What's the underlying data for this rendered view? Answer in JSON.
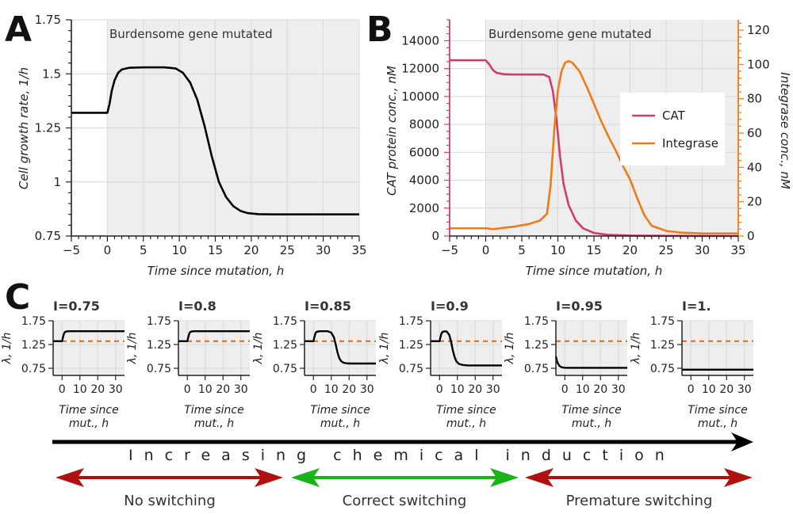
{
  "chart_data": [
    {
      "id": "A",
      "type": "line",
      "panel_label": "A",
      "xlabel": "Time since mutation, h",
      "ylabel": "Cell growth rate, 1/h",
      "xlim": [
        -5,
        35
      ],
      "ylim": [
        0.75,
        1.75
      ],
      "xticks": [
        -5,
        0,
        5,
        10,
        15,
        20,
        25,
        30,
        35
      ],
      "xtick_labels": [
        "−5",
        "0",
        "5",
        "10",
        "15",
        "20",
        "25",
        "30",
        "35"
      ],
      "yticks": [
        0.75,
        1,
        1.25,
        1.5,
        1.75
      ],
      "ytick_labels": [
        "0.75",
        "1",
        "1.25",
        "1.5",
        "1.75"
      ],
      "shaded_region": {
        "from": 0,
        "to": 35,
        "label": "Burdensome gene mutated"
      },
      "series": [
        {
          "name": "growth rate",
          "color": "#000000",
          "x": [
            -5,
            0,
            0.3,
            0.6,
            1,
            1.5,
            2,
            3,
            5,
            8,
            9.5,
            10.5,
            11.5,
            12.5,
            13.5,
            14.5,
            15.5,
            16.5,
            17.5,
            18.5,
            19.5,
            21,
            23,
            26,
            30,
            35
          ],
          "y": [
            1.32,
            1.32,
            1.36,
            1.42,
            1.47,
            1.505,
            1.52,
            1.528,
            1.53,
            1.53,
            1.525,
            1.505,
            1.46,
            1.38,
            1.26,
            1.12,
            1.0,
            0.93,
            0.888,
            0.866,
            0.856,
            0.851,
            0.85,
            0.85,
            0.85,
            0.85
          ]
        }
      ]
    },
    {
      "id": "B",
      "type": "line",
      "panel_label": "B",
      "xlabel": "Time since mutation, h",
      "ylabel": "CAT protein conc., nM",
      "ylabel_right": "Integrase conc., nM",
      "xlim": [
        -5,
        35
      ],
      "ylim": [
        0,
        15500
      ],
      "ylim_right": [
        0,
        126
      ],
      "xticks": [
        -5,
        0,
        5,
        10,
        15,
        20,
        25,
        30,
        35
      ],
      "xtick_labels": [
        "−5",
        "0",
        "5",
        "10",
        "15",
        "20",
        "25",
        "30",
        "35"
      ],
      "yticks": [
        0,
        2000,
        4000,
        6000,
        8000,
        10000,
        12000,
        14000
      ],
      "ytick_labels": [
        "0",
        "2000",
        "4000",
        "6000",
        "8000",
        "10000",
        "12000",
        "14000"
      ],
      "yticks_right": [
        0,
        20,
        40,
        60,
        80,
        100,
        120
      ],
      "ytick_labels_right": [
        "0",
        "20",
        "40",
        "60",
        "80",
        "100",
        "120"
      ],
      "shaded_region": {
        "from": 0,
        "to": 35,
        "label": "Burdensome gene mutated"
      },
      "legend": [
        "CAT",
        "Integrase"
      ],
      "legend_position": "right",
      "series": [
        {
          "name": "CAT",
          "axis": "left",
          "color": "#d13d6b",
          "x": [
            -5,
            0,
            0.5,
            1,
            1.5,
            2.5,
            4,
            6,
            8,
            8.8,
            9.3,
            9.8,
            10.3,
            10.8,
            11.5,
            12.5,
            13.5,
            15,
            17,
            20,
            25,
            30,
            35
          ],
          "y": [
            12600,
            12600,
            12300,
            11900,
            11700,
            11600,
            11580,
            11580,
            11580,
            11400,
            10400,
            8400,
            5700,
            3700,
            2200,
            1100,
            550,
            220,
            80,
            30,
            10,
            5,
            0
          ]
        },
        {
          "name": "Integrase",
          "axis": "right",
          "color": "#f07b16",
          "x": [
            -5,
            0,
            1,
            2,
            4,
            6,
            7.5,
            8.5,
            9,
            9.5,
            10,
            10.5,
            11,
            11.5,
            12,
            13,
            14,
            15,
            16,
            17,
            18,
            19,
            20,
            21,
            22,
            23,
            25,
            27,
            30,
            35
          ],
          "y": [
            4.5,
            4.5,
            4,
            4.5,
            5.5,
            7,
            9,
            13,
            30,
            62,
            85,
            96,
            101,
            102,
            101,
            96,
            87,
            77,
            67,
            58,
            50,
            41,
            33,
            22,
            12,
            6,
            3,
            2,
            1.5,
            1.5
          ]
        }
      ]
    },
    {
      "id": "C",
      "type": "line",
      "panel_label": "C",
      "xlabel": "Time since mut., h",
      "xlabel_lines": [
        "Time since",
        "mut., h"
      ],
      "ylabel": "λ, 1/h",
      "xlim": [
        -5,
        35
      ],
      "ylim": [
        0.6,
        1.75
      ],
      "xticks": [
        0,
        10,
        20,
        30
      ],
      "xtick_labels": [
        "0",
        "10",
        "20",
        "30"
      ],
      "yticks": [
        0.75,
        1.25,
        1.75
      ],
      "ytick_labels": [
        "0.75",
        "1.25",
        "1.75"
      ],
      "reference_line": {
        "y": 1.32,
        "color": "#f07b16",
        "style": "dashed"
      },
      "subplots": [
        {
          "title": "I=0.75",
          "x": [
            -5,
            0,
            0.5,
            1,
            1.5,
            2.5,
            4,
            35
          ],
          "y": [
            1.32,
            1.32,
            1.4,
            1.47,
            1.51,
            1.525,
            1.53,
            1.53
          ]
        },
        {
          "title": "I=0.8",
          "x": [
            -5,
            0,
            0.5,
            1,
            1.5,
            2.5,
            4,
            35
          ],
          "y": [
            1.32,
            1.32,
            1.4,
            1.47,
            1.51,
            1.525,
            1.53,
            1.53
          ]
        },
        {
          "title": "I=0.85",
          "x": [
            -5,
            0,
            0.5,
            1,
            1.5,
            2.5,
            4,
            8,
            10,
            11.5,
            12.5,
            13.5,
            14.5,
            15.5,
            17,
            19,
            22,
            35
          ],
          "y": [
            1.32,
            1.32,
            1.4,
            1.47,
            1.51,
            1.525,
            1.53,
            1.53,
            1.5,
            1.4,
            1.25,
            1.08,
            0.96,
            0.9,
            0.865,
            0.852,
            0.85,
            0.85
          ]
        },
        {
          "title": "I=0.9",
          "x": [
            -5,
            0,
            0.5,
            1,
            1.5,
            2.5,
            4,
            5.5,
            6.5,
            7.5,
            8.5,
            9.5,
            11,
            13,
            16,
            35
          ],
          "y": [
            1.32,
            1.32,
            1.4,
            1.47,
            1.51,
            1.525,
            1.525,
            1.45,
            1.3,
            1.12,
            0.98,
            0.89,
            0.84,
            0.82,
            0.81,
            0.81
          ]
        },
        {
          "title": "I=0.95",
          "x": [
            -5,
            -4.5,
            -4,
            -3,
            -2,
            -1,
            0,
            1,
            3,
            6,
            35
          ],
          "y": [
            1.0,
            0.92,
            0.86,
            0.8,
            0.775,
            0.765,
            0.762,
            0.76,
            0.76,
            0.76,
            0.76
          ]
        },
        {
          "title": "I=1.",
          "x": [
            -5,
            35
          ],
          "y": [
            0.72,
            0.72
          ]
        }
      ]
    }
  ],
  "annotations": {
    "induction_label": "Increasing chemical induction",
    "regimes": [
      {
        "label": "No switching",
        "color": "#b01010"
      },
      {
        "label": "Correct switching",
        "color": "#18b418"
      },
      {
        "label": "Premature switching",
        "color": "#b01010"
      }
    ]
  },
  "colors": {
    "shade": "#eeeeee",
    "grid": "#d9d9d9",
    "cat": "#d13d6b",
    "integrase": "#f07b16",
    "growth": "#000000"
  }
}
